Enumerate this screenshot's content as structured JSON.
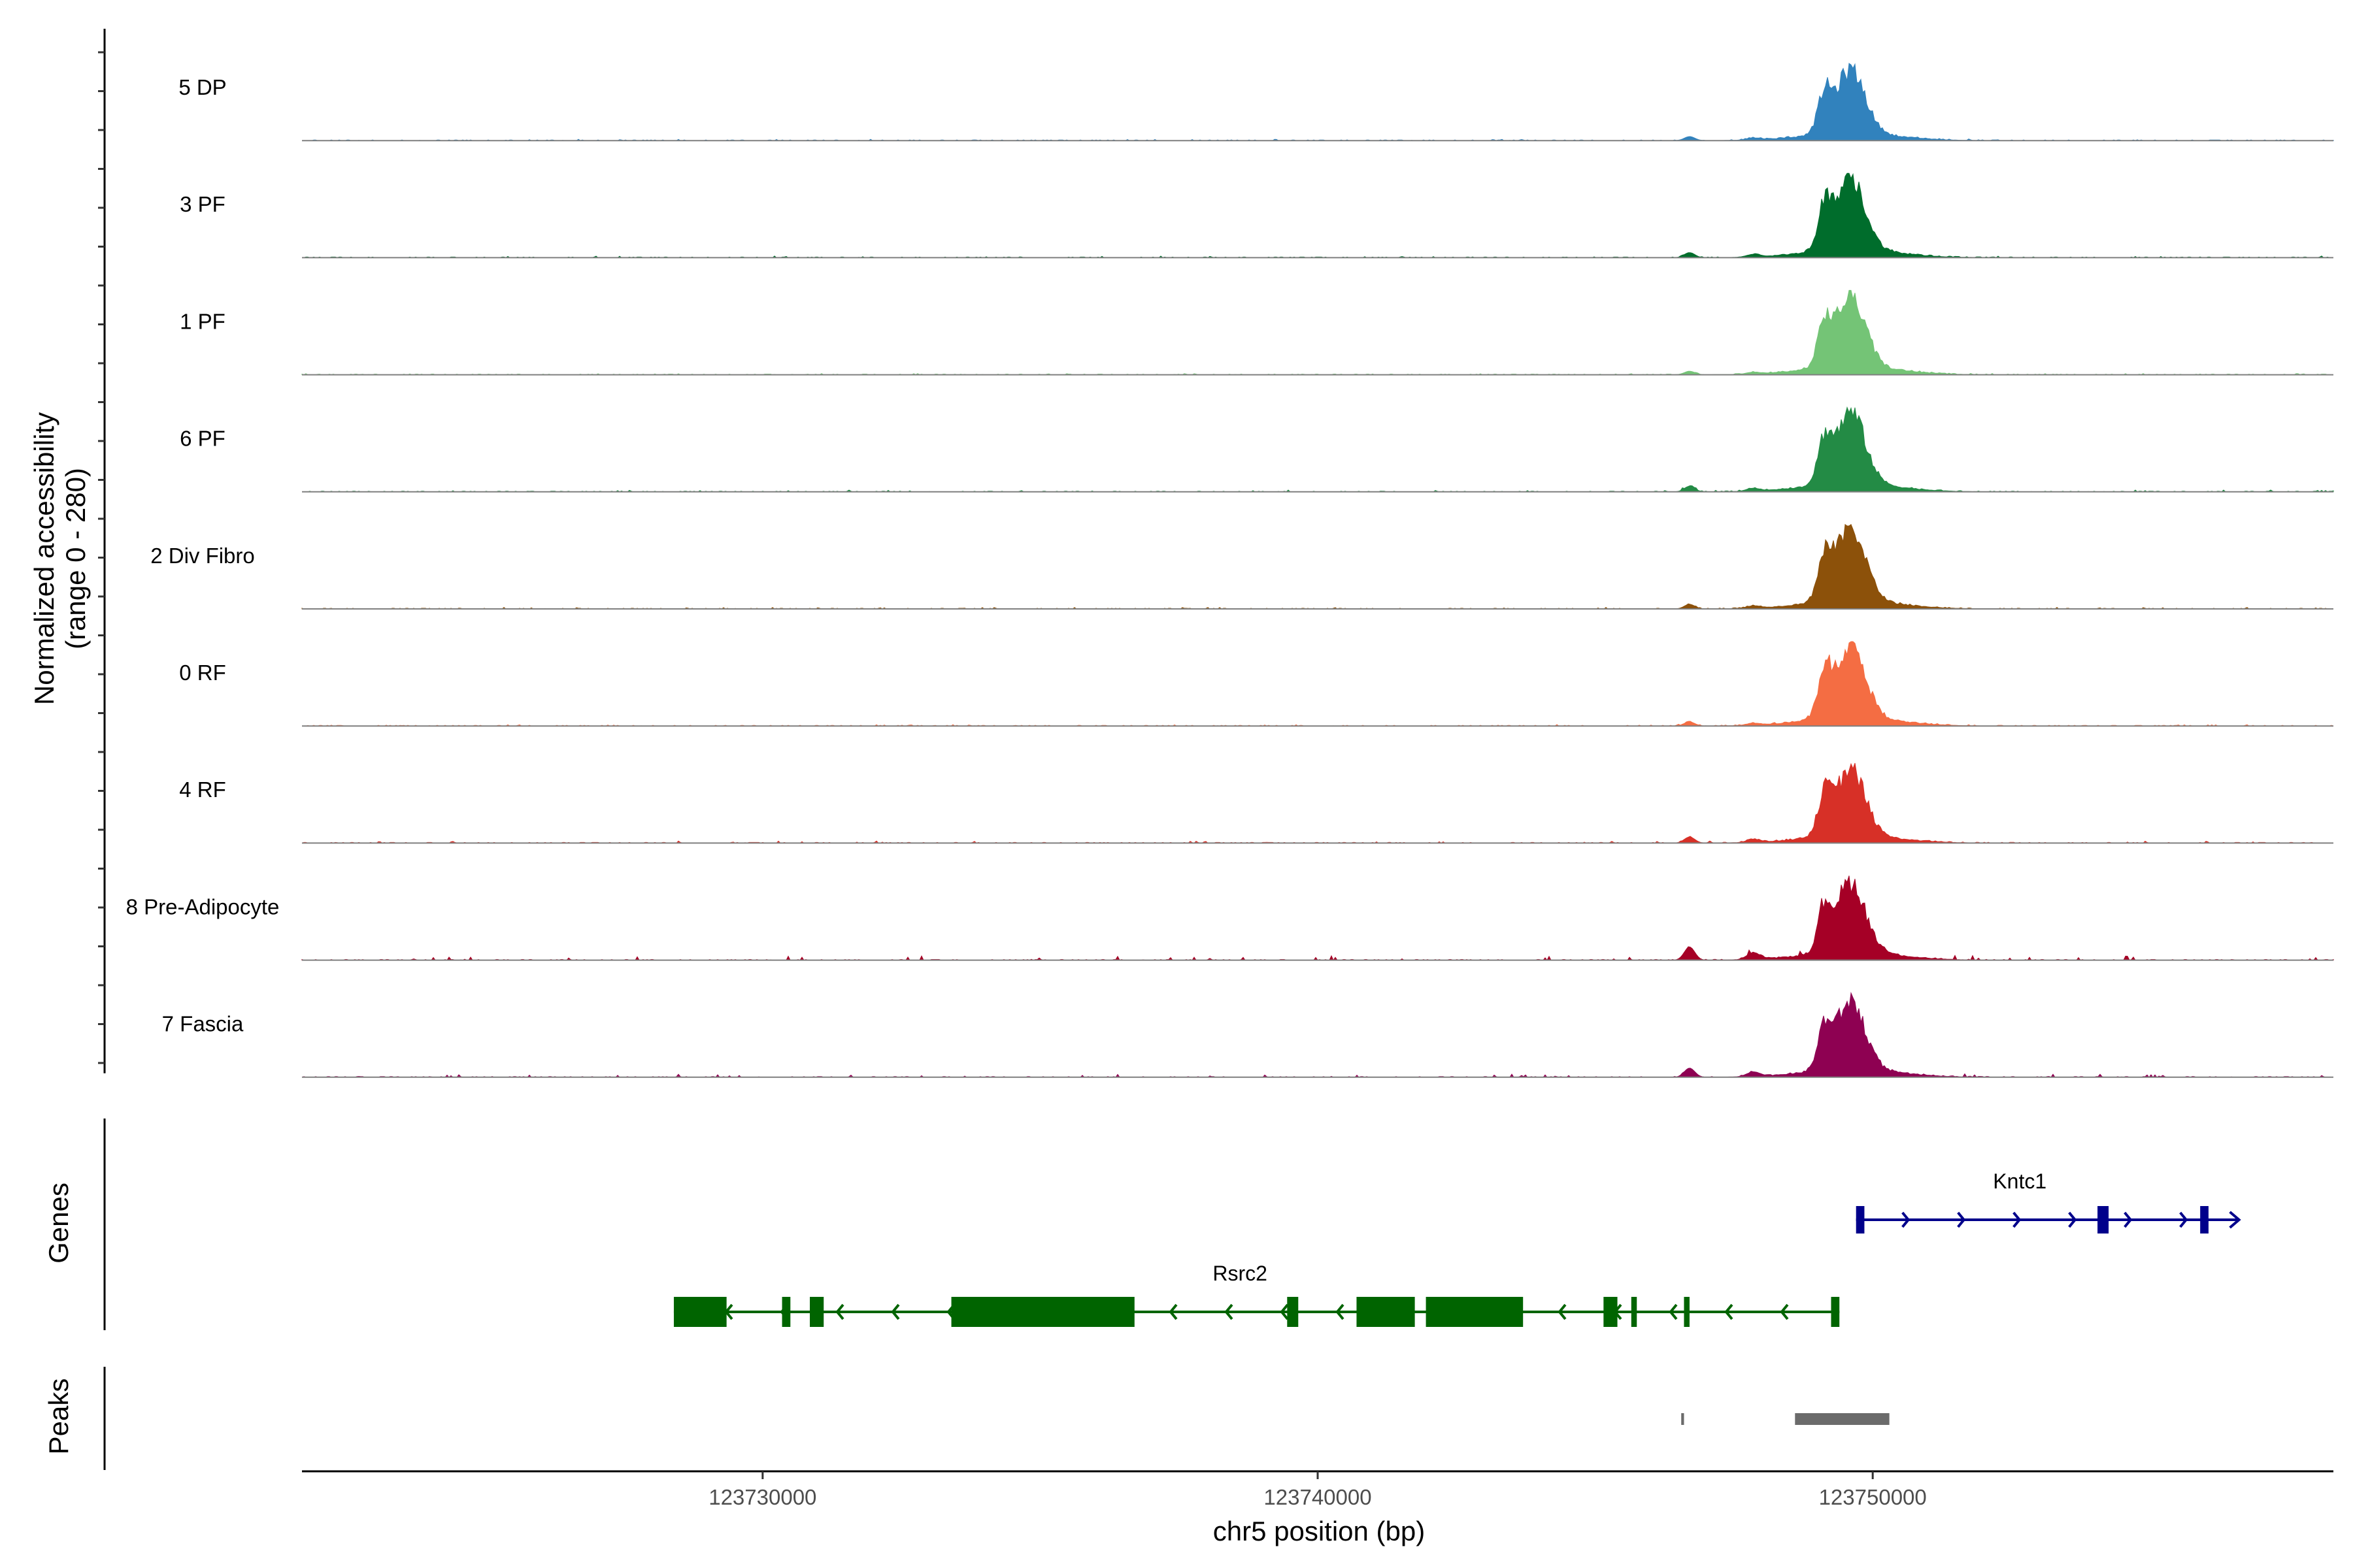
{
  "chart_data": {
    "type": "area",
    "region": {
      "chrom": "chr5",
      "start": 123721700,
      "end": 123758300
    },
    "y_axis": {
      "title_line1": "Normalized accessibility",
      "title_line2": "(range 0 - 280)",
      "range": [
        0,
        280
      ]
    },
    "x_axis": {
      "title": "chr5 position (bp)",
      "ticks": [
        123730000,
        123740000,
        123750000
      ],
      "tick_labels": [
        "123730000",
        "123740000",
        "123750000"
      ]
    },
    "tracks": [
      {
        "name": "5 DP",
        "color": "#3182bd",
        "peak_height": 0.86,
        "side_scale": 0.4
      },
      {
        "name": "3 PF",
        "color": "#006d2c",
        "peak_height": 0.95,
        "side_scale": 0.5
      },
      {
        "name": "1 PF",
        "color": "#74c476",
        "peak_height": 0.97,
        "side_scale": 0.35
      },
      {
        "name": "6 PF",
        "color": "#238b45",
        "peak_height": 0.97,
        "side_scale": 0.55
      },
      {
        "name": "2 Div Fibro",
        "color": "#8c510a",
        "peak_height": 1.0,
        "side_scale": 0.45
      },
      {
        "name": "0 RF",
        "color": "#f46d43",
        "peak_height": 1.0,
        "side_scale": 0.4
      },
      {
        "name": "4 RF",
        "color": "#d73027",
        "peak_height": 0.9,
        "side_scale": 0.6
      },
      {
        "name": "8 Pre-Adipocyte",
        "color": "#a50026",
        "peak_height": 0.95,
        "side_scale": 1.3
      },
      {
        "name": "7 Fascia",
        "color": "#8e0152",
        "peak_height": 0.92,
        "side_scale": 0.9
      }
    ],
    "genes_panel_label": "Genes",
    "peaks_panel_label": "Peaks",
    "genes": [
      {
        "name": "Kntc1",
        "strand": "+",
        "color": "#00008b",
        "start": 123749700,
        "end": 123756600,
        "exons": [
          [
            123749700,
            123749850
          ],
          [
            123754050,
            123754250
          ],
          [
            123755900,
            123756050
          ]
        ]
      },
      {
        "name": "Rsrc2",
        "strand": "-",
        "color": "#006400",
        "start": 123728400,
        "end": 123749400,
        "exons": [
          [
            123728400,
            123729350
          ],
          [
            123730350,
            123730500
          ],
          [
            123730850,
            123731100
          ],
          [
            123733400,
            123736700
          ],
          [
            123739450,
            123739650
          ],
          [
            123740700,
            123741750
          ],
          [
            123741950,
            123743700
          ],
          [
            123745150,
            123745400
          ],
          [
            123745650,
            123745750
          ],
          [
            123746600,
            123746700
          ],
          [
            123749250,
            123749400
          ]
        ]
      }
    ],
    "peaks": [
      [
        123746550,
        123746600
      ],
      [
        123748600,
        123750300
      ]
    ]
  }
}
